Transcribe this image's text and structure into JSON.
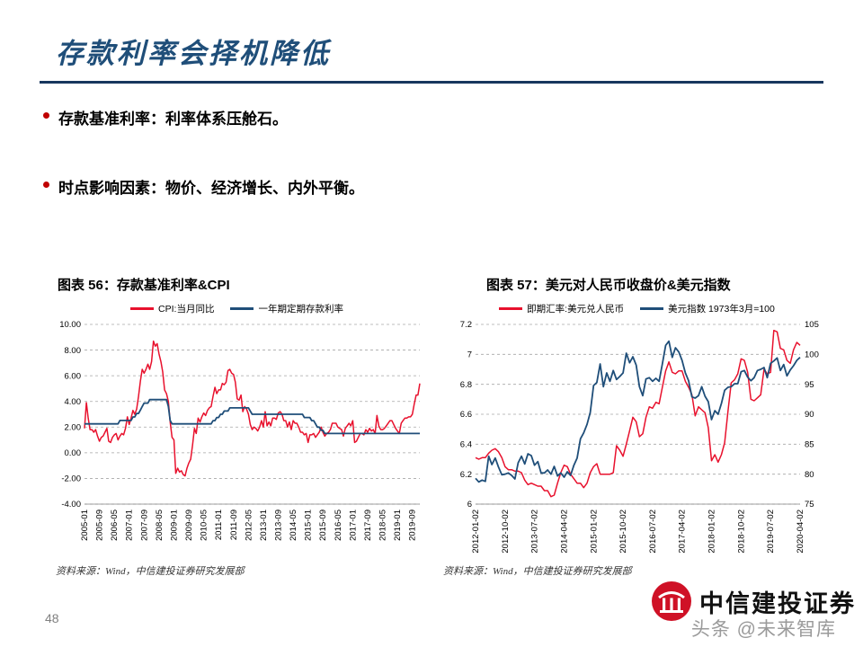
{
  "slide": {
    "title": "存款利率会择机降低",
    "bullets": [
      "存款基准利率：利率体系压舱石。",
      "时点影响因素：物价、经济增长、内外平衡。"
    ],
    "page_number": "48",
    "accent_color": "#1f4e79",
    "bullet_color": "#c00000"
  },
  "footer": {
    "logo_text": "中信建投证券",
    "logo_color": "#cf1126",
    "watermark": "头条 @未来智库"
  },
  "charts": [
    {
      "title": "图表 56：存款基准利率&CPI",
      "source": "资料来源：Wind，中信建投证券研究发展部",
      "chart_data": {
        "type": "line",
        "grid": "dashed-horizontal",
        "legend_position": "top",
        "x_tick_labels": [
          "2005-01",
          "2005-09",
          "2006-05",
          "2007-01",
          "2007-09",
          "2008-05",
          "2009-01",
          "2009-09",
          "2010-05",
          "2011-01",
          "2011-09",
          "2012-05",
          "2013-01",
          "2013-09",
          "2014-05",
          "2015-01",
          "2015-09",
          "2016-05",
          "2017-01",
          "2017-09",
          "2018-05",
          "2019-01",
          "2019-09"
        ],
        "x_tick_every": 8,
        "ylim": [
          -4,
          10
        ],
        "yticks": [
          -4,
          -2,
          0,
          2,
          4,
          6,
          8,
          10
        ],
        "ytick_labels": [
          "-4.00",
          "-2.00",
          "0.00",
          "2.00",
          "4.00",
          "6.00",
          "8.00",
          "10.00"
        ],
        "series": [
          {
            "name": "CPI:当月同比",
            "color": "#e8112d",
            "axis": "left",
            "values": [
              1.9,
              3.9,
              2.7,
              1.8,
              1.8,
              1.6,
              1.8,
              1.3,
              0.9,
              1.2,
              1.3,
              1.6,
              1.9,
              0.9,
              0.8,
              1.2,
              1.4,
              1.5,
              1.0,
              1.3,
              1.5,
              1.4,
              1.9,
              2.8,
              2.2,
              2.7,
              3.3,
              3.0,
              3.4,
              4.4,
              5.6,
              6.5,
              6.2,
              6.5,
              6.9,
              6.5,
              7.1,
              8.7,
              8.3,
              8.5,
              7.7,
              7.1,
              6.3,
              4.9,
              4.6,
              4.0,
              2.4,
              1.2,
              1.0,
              -1.6,
              -1.2,
              -1.5,
              -1.4,
              -1.7,
              -1.8,
              -1.2,
              -0.8,
              -0.5,
              0.6,
              1.9,
              1.5,
              2.7,
              2.4,
              2.8,
              3.1,
              2.9,
              3.3,
              3.5,
              3.6,
              4.4,
              5.1,
              4.6,
              4.9,
              4.9,
              5.4,
              5.3,
              5.5,
              6.4,
              6.5,
              6.2,
              6.1,
              5.5,
              4.2,
              4.1,
              4.5,
              3.2,
              3.6,
              3.4,
              3.0,
              2.2,
              1.8,
              2.0,
              1.9,
              1.7,
              2.0,
              2.5,
              2.0,
              3.2,
              2.1,
              2.4,
              2.1,
              2.7,
              2.7,
              2.6,
              3.1,
              3.2,
              3.0,
              2.5,
              2.5,
              2.0,
              2.4,
              1.8,
              2.5,
              2.3,
              2.3,
              2.0,
              1.6,
              1.6,
              1.4,
              1.5,
              0.8,
              1.4,
              1.4,
              1.5,
              1.2,
              1.4,
              1.6,
              2.0,
              1.6,
              1.3,
              1.5,
              1.6,
              1.8,
              2.3,
              2.3,
              2.3,
              2.0,
              1.9,
              1.8,
              1.3,
              1.9,
              2.1,
              2.3,
              2.1,
              2.5,
              0.8,
              0.9,
              1.2,
              1.5,
              1.5,
              1.4,
              1.8,
              1.6,
              1.9,
              1.7,
              1.8,
              1.5,
              2.9,
              2.1,
              1.8,
              1.8,
              1.9,
              2.1,
              2.3,
              2.5,
              2.5,
              2.2,
              1.9,
              1.7,
              1.5,
              2.3,
              2.5,
              2.7,
              2.7,
              2.8,
              2.8,
              3.0,
              3.8,
              4.5,
              4.5,
              5.4
            ]
          },
          {
            "name": "一年期定期存款利率",
            "color": "#1f4e79",
            "axis": "left",
            "values": [
              2.25,
              2.25,
              2.25,
              2.25,
              2.25,
              2.25,
              2.25,
              2.25,
              2.25,
              2.25,
              2.25,
              2.25,
              2.25,
              2.25,
              2.25,
              2.25,
              2.25,
              2.25,
              2.25,
              2.52,
              2.52,
              2.52,
              2.52,
              2.52,
              2.52,
              2.52,
              2.79,
              2.79,
              3.06,
              3.06,
              3.33,
              3.6,
              3.87,
              3.87,
              3.87,
              4.14,
              4.14,
              4.14,
              4.14,
              4.14,
              4.14,
              4.14,
              4.14,
              4.14,
              4.14,
              3.6,
              2.52,
              2.25,
              2.25,
              2.25,
              2.25,
              2.25,
              2.25,
              2.25,
              2.25,
              2.25,
              2.25,
              2.25,
              2.25,
              2.25,
              2.25,
              2.25,
              2.25,
              2.25,
              2.25,
              2.25,
              2.25,
              2.25,
              2.25,
              2.5,
              2.5,
              2.75,
              2.75,
              3.0,
              3.0,
              3.25,
              3.25,
              3.25,
              3.5,
              3.5,
              3.5,
              3.5,
              3.5,
              3.5,
              3.5,
              3.5,
              3.5,
              3.5,
              3.5,
              3.25,
              3.0,
              3.0,
              3.0,
              3.0,
              3.0,
              3.0,
              3.0,
              3.0,
              3.0,
              3.0,
              3.0,
              3.0,
              3.0,
              3.0,
              3.0,
              3.0,
              3.0,
              3.0,
              3.0,
              3.0,
              3.0,
              3.0,
              3.0,
              3.0,
              3.0,
              3.0,
              3.0,
              3.0,
              2.75,
              2.75,
              2.75,
              2.75,
              2.5,
              2.5,
              2.25,
              2.0,
              2.0,
              1.75,
              1.75,
              1.5,
              1.5,
              1.5,
              1.5,
              1.5,
              1.5,
              1.5,
              1.5,
              1.5,
              1.5,
              1.5,
              1.5,
              1.5,
              1.5,
              1.5,
              1.5,
              1.5,
              1.5,
              1.5,
              1.5,
              1.5,
              1.5,
              1.5,
              1.5,
              1.5,
              1.5,
              1.5,
              1.5,
              1.5,
              1.5,
              1.5,
              1.5,
              1.5,
              1.5,
              1.5,
              1.5,
              1.5,
              1.5,
              1.5,
              1.5,
              1.5,
              1.5,
              1.5,
              1.5,
              1.5,
              1.5,
              1.5,
              1.5,
              1.5,
              1.5,
              1.5,
              1.5
            ]
          }
        ]
      }
    },
    {
      "title": "图表 57：美元对人民币收盘价&美元指数",
      "source": "资料来源：Wind，中信建投证券研究发展部",
      "chart_data": {
        "type": "line",
        "grid": "dashed-horizontal",
        "legend_position": "top",
        "x_tick_labels": [
          "2012-01-02",
          "2012-10-02",
          "2013-07-02",
          "2014-04-02",
          "2015-01-02",
          "2015-10-02",
          "2016-07-02",
          "2017-04-02",
          "2018-01-02",
          "2018-10-02",
          "2019-07-02",
          "2020-04-02"
        ],
        "x_tick_every": 9,
        "ylim": [
          6,
          7.2
        ],
        "yticks": [
          6,
          6.2,
          6.4,
          6.6,
          6.8,
          7,
          7.2
        ],
        "ytick_labels": [
          "6",
          "6.2",
          "6.4",
          "6.6",
          "6.8",
          "7",
          "7.2"
        ],
        "y2lim": [
          75,
          105
        ],
        "y2ticks": [
          75,
          80,
          85,
          90,
          95,
          100,
          105
        ],
        "y2tick_labels": [
          "75",
          "80",
          "85",
          "90",
          "95",
          "100",
          "105"
        ],
        "series": [
          {
            "name": "即期汇率:美元兑人民币",
            "color": "#e8112d",
            "axis": "left",
            "values": [
              6.31,
              6.3,
              6.31,
              6.31,
              6.34,
              6.36,
              6.37,
              6.35,
              6.31,
              6.25,
              6.23,
              6.23,
              6.22,
              6.22,
              6.21,
              6.16,
              6.13,
              6.14,
              6.13,
              6.12,
              6.12,
              6.09,
              6.09,
              6.05,
              6.06,
              6.14,
              6.21,
              6.26,
              6.25,
              6.2,
              6.17,
              6.14,
              6.14,
              6.11,
              6.14,
              6.21,
              6.25,
              6.27,
              6.2,
              6.2,
              6.2,
              6.2,
              6.21,
              6.39,
              6.36,
              6.32,
              6.4,
              6.49,
              6.58,
              6.55,
              6.45,
              6.47,
              6.58,
              6.65,
              6.64,
              6.68,
              6.67,
              6.78,
              6.89,
              6.95,
              6.88,
              6.87,
              6.89,
              6.89,
              6.82,
              6.78,
              6.73,
              6.59,
              6.65,
              6.63,
              6.61,
              6.51,
              6.29,
              6.33,
              6.28,
              6.33,
              6.41,
              6.62,
              6.81,
              6.83,
              6.87,
              6.97,
              6.96,
              6.88,
              6.7,
              6.69,
              6.71,
              6.73,
              6.9,
              6.87,
              6.88,
              7.16,
              7.15,
              7.04,
              7.03,
              6.96,
              6.94,
              7.03,
              7.08,
              7.06
            ]
          },
          {
            "name": "美元指数 1973年3月=100",
            "color": "#1f4e79",
            "axis": "right",
            "values": [
              79.3,
              78.7,
              79.0,
              78.8,
              83.0,
              81.6,
              82.7,
              81.2,
              79.9,
              80.0,
              80.2,
              79.8,
              79.2,
              81.9,
              83.0,
              81.7,
              83.4,
              83.1,
              81.5,
              82.1,
              80.2,
              80.2,
              80.7,
              80.0,
              81.3,
              79.7,
              80.2,
              79.5,
              80.4,
              79.8,
              81.5,
              82.7,
              85.9,
              86.9,
              88.3,
              90.3,
              94.8,
              95.3,
              98.4,
              94.6,
              96.9,
              95.5,
              97.3,
              95.8,
              96.3,
              96.9,
              100.2,
              98.6,
              99.6,
              98.2,
              94.6,
              93.1,
              95.9,
              96.1,
              95.5,
              96.0,
              95.5,
              98.4,
              101.5,
              102.2,
              99.5,
              101.1,
              100.4,
              99.0,
              96.9,
              95.6,
              92.9,
              92.7,
              93.1,
              94.6,
              93.0,
              92.1,
              89.1,
              90.6,
              90.0,
              91.8,
              94.0,
              94.5,
              94.6,
              95.1,
              95.1,
              97.1,
              97.3,
              96.2,
              95.6,
              96.1,
              97.3,
              97.5,
              97.8,
              96.1,
              98.5,
              98.9,
              99.4,
              97.3,
              98.3,
              96.4,
              97.4,
              98.1,
              99.0,
              99.5
            ]
          }
        ]
      }
    }
  ]
}
